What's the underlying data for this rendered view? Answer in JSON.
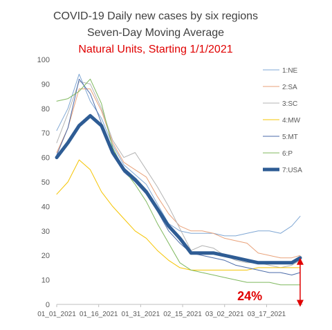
{
  "chart_data": {
    "type": "line",
    "title": "COVID-19 Daily new cases by six regions",
    "subtitle": "Seven-Day Moving Average",
    "subtitle2": "Natural Units, Starting 1/1/2021",
    "subtitle2_color": "#e00000",
    "xlabel": "",
    "ylabel": "",
    "x_tick_labels": [
      "01_01_2021",
      "01_16_2021",
      "01_31_2021",
      "02_15_2021",
      "03_02_2021",
      "03_17_2021"
    ],
    "x_tick_days": [
      0,
      15,
      30,
      45,
      60,
      75
    ],
    "xlim": [
      0,
      88
    ],
    "ylim": [
      0,
      100
    ],
    "y_ticks": [
      0,
      10,
      20,
      30,
      40,
      50,
      60,
      70,
      80,
      90,
      100
    ],
    "grid": false,
    "legend_position": "right",
    "annotation": {
      "text": "24%",
      "color": "#e00000",
      "x_day": 69,
      "y": 4
    },
    "arrow": {
      "x_day": 87,
      "from_y": 19,
      "to_y": -1,
      "color": "#e00000"
    },
    "x": [
      0,
      4,
      8,
      12,
      16,
      20,
      24,
      28,
      32,
      36,
      40,
      44,
      48,
      52,
      56,
      60,
      64,
      68,
      72,
      76,
      80,
      84,
      87
    ],
    "series": [
      {
        "name": "1:NE",
        "color": "#7fa7d4",
        "width": 1,
        "values": [
          71,
          80,
          94,
          83,
          76,
          65,
          57,
          53,
          49,
          41,
          33,
          30,
          29,
          29,
          29,
          28,
          28,
          29,
          30,
          30,
          29,
          32,
          36
        ]
      },
      {
        "name": "2:SA",
        "color": "#e9a27a",
        "width": 1,
        "values": [
          62,
          72,
          88,
          88,
          79,
          66,
          58,
          55,
          52,
          44,
          37,
          32,
          30,
          30,
          29,
          27,
          26,
          25,
          21,
          20,
          19,
          19,
          20
        ]
      },
      {
        "name": "3:SC",
        "color": "#b3b3b3",
        "width": 1,
        "values": [
          66,
          78,
          91,
          90,
          80,
          67,
          60,
          62,
          55,
          48,
          40,
          31,
          22,
          24,
          23,
          20,
          18,
          17,
          17,
          16,
          15,
          16,
          18
        ]
      },
      {
        "name": "4:MW",
        "color": "#f5c400",
        "width": 1,
        "values": [
          45,
          50,
          59,
          55,
          46,
          40,
          35,
          30,
          27,
          22,
          18,
          15,
          14,
          14,
          14,
          14,
          14,
          14,
          15,
          15,
          15,
          15,
          15
        ]
      },
      {
        "name": "5:MT",
        "color": "#4a6aa8",
        "width": 1,
        "values": [
          61,
          72,
          92,
          86,
          74,
          61,
          54,
          50,
          45,
          38,
          30,
          25,
          21,
          20,
          19,
          18,
          16,
          15,
          14,
          13,
          13,
          12,
          13
        ]
      },
      {
        "name": "6:P",
        "color": "#7fb85e",
        "width": 1,
        "values": [
          83,
          84,
          87,
          92,
          82,
          64,
          55,
          49,
          42,
          33,
          25,
          17,
          14,
          13,
          12,
          11,
          10,
          9,
          9,
          9,
          8,
          8,
          8
        ]
      },
      {
        "name": "7:USA",
        "color": "#2e5c94",
        "width": 5,
        "values": [
          60,
          66,
          73,
          77,
          73,
          62,
          55,
          51,
          46,
          39,
          32,
          27,
          21,
          21,
          21,
          20,
          19,
          18,
          17,
          17,
          17,
          17,
          19
        ]
      }
    ]
  }
}
